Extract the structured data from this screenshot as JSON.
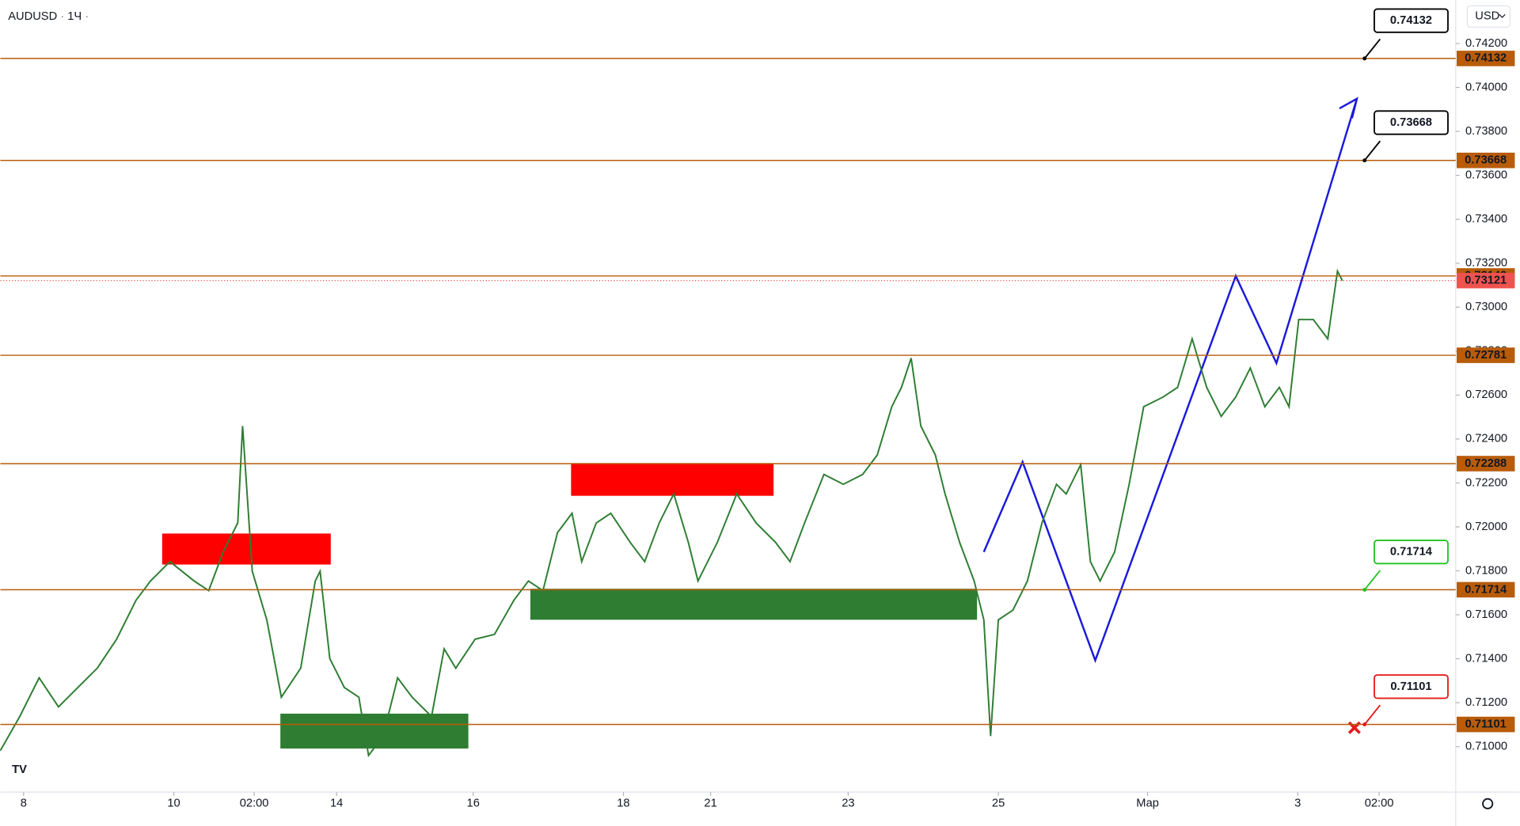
{
  "header": {
    "symbol": "AUDUSD",
    "interval": "1Ч",
    "currency": "USD"
  },
  "chart_data": {
    "type": "line",
    "color": "#2e7d32",
    "x": [
      0,
      4,
      8,
      12,
      16,
      20,
      24,
      28,
      31,
      35,
      40,
      43,
      46,
      49,
      50,
      52,
      55,
      58,
      62,
      65,
      66,
      68,
      71,
      74,
      76,
      79,
      82,
      85,
      89,
      91.6,
      94,
      98,
      102,
      106,
      109,
      112,
      115,
      118,
      120,
      123,
      126,
      130,
      133,
      136,
      139,
      142,
      144,
      148,
      152,
      156,
      160,
      163,
      166,
      170,
      174,
      178,
      181,
      184,
      186,
      188,
      190,
      193,
      195,
      198,
      201,
      203,
      204.4,
      206,
      209,
      212,
      215,
      218,
      220,
      223,
      225,
      227,
      230,
      233,
      236,
      240,
      243,
      246,
      249,
      252,
      255,
      258,
      261,
      264,
      266,
      268,
      271,
      274,
      276,
      277
    ],
    "values": [
      0.70982,
      0.71137,
      0.71313,
      0.71181,
      0.71269,
      0.71357,
      0.71489,
      0.71666,
      0.71754,
      0.71842,
      0.71754,
      0.7171,
      0.71886,
      0.72018,
      0.72459,
      0.71798,
      0.71577,
      0.71225,
      0.71357,
      0.71754,
      0.71798,
      0.71401,
      0.71269,
      0.71225,
      0.7096,
      0.71048,
      0.71313,
      0.71225,
      0.71137,
      0.71445,
      0.71357,
      0.71489,
      0.71511,
      0.71666,
      0.71754,
      0.7171,
      0.71974,
      0.72062,
      0.71842,
      0.72018,
      0.72062,
      0.7193,
      0.71842,
      0.72018,
      0.7215,
      0.7193,
      0.71754,
      0.7193,
      0.7215,
      0.72018,
      0.7193,
      0.71842,
      0.72018,
      0.72239,
      0.72194,
      0.72239,
      0.72327,
      0.72547,
      0.72635,
      0.72768,
      0.72459,
      0.72327,
      0.7215,
      0.7193,
      0.71754,
      0.71577,
      0.71048,
      0.71577,
      0.71621,
      0.71754,
      0.72018,
      0.72194,
      0.7215,
      0.72283,
      0.71842,
      0.71754,
      0.71886,
      0.72194,
      0.72547,
      0.72591,
      0.72635,
      0.72856,
      0.72635,
      0.72503,
      0.72591,
      0.72723,
      0.72547,
      0.72635,
      0.72547,
      0.72944,
      0.72944,
      0.72856,
      0.73164,
      0.73121
    ],
    "xlim": [
      0,
      300
    ],
    "xticks": [
      {
        "value": 4.8,
        "label": "8"
      },
      {
        "value": 35.8,
        "label": "10"
      },
      {
        "value": 52.4,
        "label": "02:00"
      },
      {
        "value": 69.4,
        "label": "14"
      },
      {
        "value": 97.6,
        "label": "16"
      },
      {
        "value": 128.6,
        "label": "18"
      },
      {
        "value": 146.6,
        "label": "21"
      },
      {
        "value": 175,
        "label": "23"
      },
      {
        "value": 206,
        "label": "25"
      },
      {
        "value": 236.8,
        "label": "Мар"
      },
      {
        "value": 267.8,
        "label": "3"
      },
      {
        "value": 284.6,
        "label": "02:00"
      }
    ],
    "ylim": [
      0.70793,
      0.74398
    ],
    "yticks": [
      {
        "value": 0.71,
        "label": "0.71000"
      },
      {
        "value": 0.712,
        "label": "0.71200"
      },
      {
        "value": 0.714,
        "label": "0.71400"
      },
      {
        "value": 0.716,
        "label": "0.71600"
      },
      {
        "value": 0.718,
        "label": "0.71800"
      },
      {
        "value": 0.72,
        "label": "0.72000"
      },
      {
        "value": 0.722,
        "label": "0.72200"
      },
      {
        "value": 0.724,
        "label": "0.72400"
      },
      {
        "value": 0.726,
        "label": "0.72600"
      },
      {
        "value": 0.728,
        "label": "0.72800"
      },
      {
        "value": 0.73,
        "label": "0.73000"
      },
      {
        "value": 0.732,
        "label": "0.73200"
      },
      {
        "value": 0.734,
        "label": "0.73400"
      },
      {
        "value": 0.736,
        "label": "0.73600"
      },
      {
        "value": 0.738,
        "label": "0.73800"
      },
      {
        "value": 0.74,
        "label": "0.74000"
      },
      {
        "value": 0.742,
        "label": "0.74200"
      }
    ],
    "levels": [
      0.74132,
      0.73668,
      0.73142,
      0.72781,
      0.72288,
      0.71714,
      0.71101
    ],
    "level_color": "#b85c0a",
    "last_price": 0.73121,
    "last_price_color": "#ef5350",
    "callouts": [
      {
        "value": 0.74132,
        "color": "#000000"
      },
      {
        "value": 0.73668,
        "color": "#000000"
      },
      {
        "value": 0.71714,
        "color": "#22c322"
      },
      {
        "value": 0.71101,
        "color": "#e61919"
      }
    ]
  }
}
